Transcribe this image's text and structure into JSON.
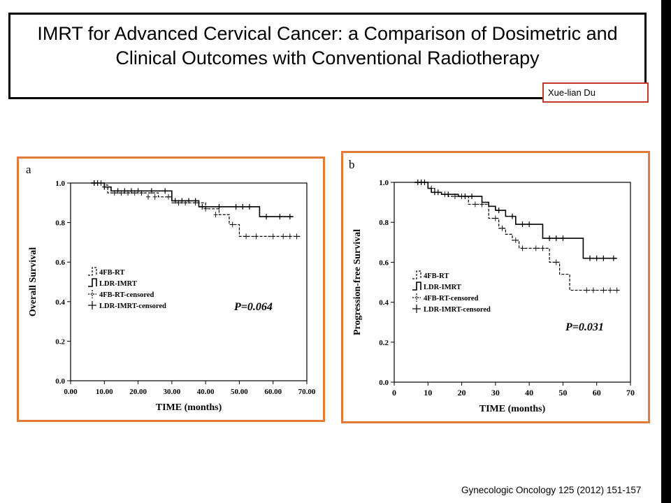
{
  "title": "IMRT for Advanced Cervical Cancer: a Comparison of Dosimetric and Clinical Outcomes with Conventional Radiotherapy",
  "author": "Xue-lian Du",
  "citation": "Gynecologic Oncology 125 (2012) 151-157",
  "colors": {
    "frame": "#e07b39",
    "author_border": "#c0392b",
    "sidebar": "#000000"
  },
  "chart_data": [
    {
      "panel": "a",
      "type": "line",
      "step": true,
      "title": "",
      "xlabel": "TIME (months)",
      "ylabel": "Overall Survival",
      "xlim": [
        0,
        70
      ],
      "ylim": [
        0,
        1
      ],
      "x_ticks": [
        0,
        10,
        20,
        30,
        40,
        50,
        60,
        70
      ],
      "x_tick_labels": [
        "0.00",
        "10.00",
        "20.00",
        "30.00",
        "40.00",
        "50.00",
        "60.00",
        "70.00"
      ],
      "y_ticks": [
        0,
        0.2,
        0.4,
        0.6,
        0.8,
        1.0
      ],
      "y_tick_labels": [
        "0.0",
        "0.2",
        "0.4",
        "0.6",
        "0.8",
        "1.0"
      ],
      "legend": [
        "4FB-RT",
        "LDR-IMRT",
        "4FB-RT-censored",
        "LDR-IMRT-censored"
      ],
      "annotation": "P=0.064",
      "series": [
        {
          "name": "4FB-RT",
          "style": "dashed",
          "x": [
            6,
            10,
            11,
            22,
            26,
            30,
            40,
            44,
            47,
            50,
            68
          ],
          "y": [
            1.0,
            0.99,
            0.95,
            0.95,
            0.93,
            0.9,
            0.87,
            0.84,
            0.79,
            0.73,
            0.73
          ],
          "censored_x": [
            7,
            8,
            9,
            13,
            15,
            17,
            19,
            21,
            23,
            25,
            29,
            32,
            34,
            37,
            40,
            43,
            48,
            52,
            55,
            60,
            63,
            65,
            67
          ],
          "censored_y": [
            1.0,
            1.0,
            1.0,
            0.95,
            0.95,
            0.95,
            0.95,
            0.95,
            0.93,
            0.93,
            0.93,
            0.9,
            0.9,
            0.9,
            0.87,
            0.84,
            0.79,
            0.73,
            0.73,
            0.73,
            0.73,
            0.73,
            0.73
          ]
        },
        {
          "name": "LDR-IMRT",
          "style": "solid",
          "x": [
            6,
            10,
            12,
            29,
            30,
            38,
            56,
            66
          ],
          "y": [
            1.0,
            0.98,
            0.96,
            0.96,
            0.91,
            0.88,
            0.83,
            0.83
          ],
          "censored_x": [
            7,
            8,
            10,
            14,
            16,
            18,
            20,
            24,
            28,
            31,
            33,
            35,
            37,
            39,
            44,
            49,
            51,
            53,
            58,
            62,
            65
          ],
          "censored_y": [
            1.0,
            1.0,
            0.98,
            0.96,
            0.96,
            0.96,
            0.96,
            0.96,
            0.96,
            0.91,
            0.91,
            0.91,
            0.91,
            0.88,
            0.88,
            0.88,
            0.88,
            0.88,
            0.83,
            0.83,
            0.83
          ]
        }
      ]
    },
    {
      "panel": "b",
      "type": "line",
      "step": true,
      "title": "",
      "xlabel": "TIME (months)",
      "ylabel": "Progression-free Survival",
      "xlim": [
        0,
        70
      ],
      "ylim": [
        0,
        1
      ],
      "x_ticks": [
        0,
        10,
        20,
        30,
        40,
        50,
        60,
        70
      ],
      "x_tick_labels": [
        "0",
        "10",
        "20",
        "30",
        "40",
        "50",
        "60",
        "70"
      ],
      "y_ticks": [
        0,
        0.2,
        0.4,
        0.6,
        0.8,
        1.0
      ],
      "y_tick_labels": [
        "0.0",
        "0.2",
        "0.4",
        "0.6",
        "0.8",
        "1.0"
      ],
      "legend": [
        "4FB-RT",
        "LDR-IMRT",
        "4FB-RT-censored",
        "LDR-IMRT-censored"
      ],
      "annotation": "P=0.031",
      "series": [
        {
          "name": "4FB-RT",
          "style": "dashed",
          "x": [
            6,
            10,
            12,
            14,
            16,
            22,
            28,
            31,
            33,
            35,
            37,
            41,
            46,
            49,
            50,
            52,
            67
          ],
          "y": [
            1.0,
            0.97,
            0.95,
            0.94,
            0.93,
            0.89,
            0.82,
            0.77,
            0.74,
            0.71,
            0.67,
            0.67,
            0.6,
            0.54,
            0.54,
            0.46,
            0.46
          ],
          "censored_x": [
            8,
            9,
            11,
            15,
            18,
            20,
            24,
            26,
            30,
            32,
            36,
            38,
            42,
            44,
            48,
            57,
            59,
            62,
            64,
            66
          ],
          "censored_y": [
            1.0,
            1.0,
            0.97,
            0.94,
            0.93,
            0.93,
            0.89,
            0.89,
            0.82,
            0.77,
            0.71,
            0.67,
            0.67,
            0.67,
            0.6,
            0.46,
            0.46,
            0.46,
            0.46,
            0.46
          ]
        },
        {
          "name": "LDR-IMRT",
          "style": "solid",
          "x": [
            6,
            10,
            11,
            14,
            19,
            26,
            28,
            30,
            33,
            36,
            44,
            56,
            66
          ],
          "y": [
            1.0,
            0.97,
            0.95,
            0.94,
            0.93,
            0.9,
            0.88,
            0.86,
            0.83,
            0.79,
            0.72,
            0.62,
            0.62
          ],
          "censored_x": [
            7,
            8,
            9,
            12,
            13,
            16,
            21,
            23,
            31,
            35,
            38,
            40,
            46,
            48,
            50,
            58,
            60,
            62,
            65
          ],
          "censored_y": [
            1.0,
            1.0,
            1.0,
            0.95,
            0.95,
            0.94,
            0.93,
            0.93,
            0.86,
            0.83,
            0.79,
            0.79,
            0.72,
            0.72,
            0.72,
            0.62,
            0.62,
            0.62,
            0.62
          ]
        }
      ]
    }
  ]
}
